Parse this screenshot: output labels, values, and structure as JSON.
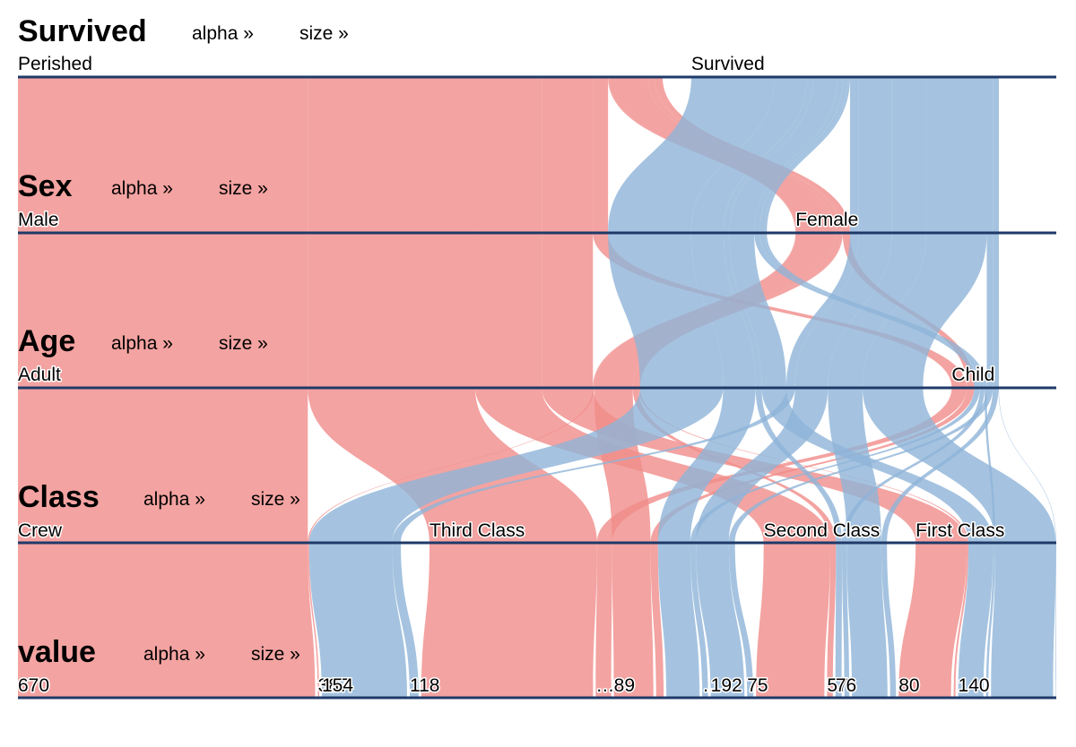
{
  "chart_data": {
    "type": "parallel-sets",
    "dimensions": [
      {
        "title": "Survived",
        "categories": [
          "Perished",
          "Survived"
        ],
        "sort_links": [
          "alpha »",
          "size »"
        ]
      },
      {
        "title": "Sex",
        "categories": [
          "Male",
          "Female"
        ],
        "sort_links": [
          "alpha »",
          "size »"
        ]
      },
      {
        "title": "Age",
        "categories": [
          "Adult",
          "Child"
        ],
        "sort_links": [
          "alpha »",
          "size »"
        ]
      },
      {
        "title": "Class",
        "categories": [
          "Crew",
          "Third Class",
          "Second Class",
          "First Class"
        ],
        "sort_links": [
          "alpha »",
          "size »"
        ]
      },
      {
        "title": "value",
        "categories": [
          "670",
          "387",
          "154",
          "118",
          "…",
          "89",
          "…",
          "192",
          "75",
          "57",
          "76",
          "80",
          "140"
        ],
        "sort_links": [
          "alpha »",
          "size »"
        ]
      }
    ],
    "ribbons": [
      {
        "survived": "Perished",
        "sex": "Male",
        "age": "Adult",
        "class": "Crew",
        "value": 670
      },
      {
        "survived": "Perished",
        "sex": "Male",
        "age": "Adult",
        "class": "Third Class",
        "value": 387
      },
      {
        "survived": "Perished",
        "sex": "Male",
        "age": "Adult",
        "class": "Second Class",
        "value": 154
      },
      {
        "survived": "Perished",
        "sex": "Male",
        "age": "Adult",
        "class": "First Class",
        "value": 118
      },
      {
        "survived": "Perished",
        "sex": "Male",
        "age": "Child",
        "class": "Third Class",
        "value": 35
      },
      {
        "survived": "Perished",
        "sex": "Female",
        "age": "Adult",
        "class": "Crew",
        "value": 3
      },
      {
        "survived": "Perished",
        "sex": "Female",
        "age": "Adult",
        "class": "Third Class",
        "value": 89
      },
      {
        "survived": "Perished",
        "sex": "Female",
        "age": "Adult",
        "class": "Second Class",
        "value": 13
      },
      {
        "survived": "Perished",
        "sex": "Female",
        "age": "Adult",
        "class": "First Class",
        "value": 4
      },
      {
        "survived": "Perished",
        "sex": "Female",
        "age": "Child",
        "class": "Third Class",
        "value": 17
      },
      {
        "survived": "Survived",
        "sex": "Male",
        "age": "Adult",
        "class": "Crew",
        "value": 192
      },
      {
        "survived": "Survived",
        "sex": "Male",
        "age": "Adult",
        "class": "Third Class",
        "value": 75
      },
      {
        "survived": "Survived",
        "sex": "Male",
        "age": "Adult",
        "class": "Second Class",
        "value": 14
      },
      {
        "survived": "Survived",
        "sex": "Male",
        "age": "Adult",
        "class": "First Class",
        "value": 57
      },
      {
        "survived": "Survived",
        "sex": "Male",
        "age": "Child",
        "class": "Third Class",
        "value": 13
      },
      {
        "survived": "Survived",
        "sex": "Male",
        "age": "Child",
        "class": "Second Class",
        "value": 11
      },
      {
        "survived": "Survived",
        "sex": "Male",
        "age": "Child",
        "class": "First Class",
        "value": 5
      },
      {
        "survived": "Survived",
        "sex": "Female",
        "age": "Adult",
        "class": "Crew",
        "value": 20
      },
      {
        "survived": "Survived",
        "sex": "Female",
        "age": "Adult",
        "class": "Third Class",
        "value": 76
      },
      {
        "survived": "Survived",
        "sex": "Female",
        "age": "Adult",
        "class": "Second Class",
        "value": 80
      },
      {
        "survived": "Survived",
        "sex": "Female",
        "age": "Adult",
        "class": "First Class",
        "value": 140
      },
      {
        "survived": "Survived",
        "sex": "Female",
        "age": "Child",
        "class": "Third Class",
        "value": 14
      },
      {
        "survived": "Survived",
        "sex": "Female",
        "age": "Child",
        "class": "Second Class",
        "value": 13
      },
      {
        "survived": "Survived",
        "sex": "Female",
        "age": "Child",
        "class": "First Class",
        "value": 1
      }
    ],
    "colors": {
      "Perished": "#f08c8a",
      "Survived": "#8fb4d8",
      "axis": "#1f3a68"
    }
  }
}
